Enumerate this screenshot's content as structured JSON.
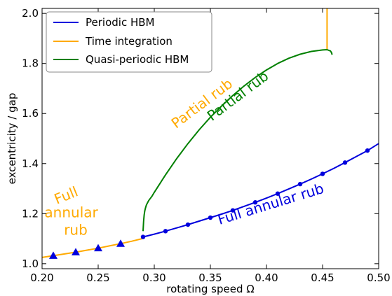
{
  "chart_data": {
    "type": "line",
    "xlabel": "rotating speed Ω",
    "ylabel": "excentricity / gap",
    "xlim": [
      0.2,
      0.5
    ],
    "ylim": [
      0.98,
      2.02
    ],
    "x_ticks": [
      "0.20",
      "0.25",
      "0.30",
      "0.35",
      "0.40",
      "0.45",
      "0.50"
    ],
    "x_tick_values": [
      0.2,
      0.25,
      0.3,
      0.35,
      0.4,
      0.45,
      0.5
    ],
    "y_ticks": [
      "1.0",
      "1.2",
      "1.4",
      "1.6",
      "1.8",
      "2.0"
    ],
    "y_tick_values": [
      1.0,
      1.2,
      1.4,
      1.6,
      1.8,
      2.0
    ],
    "grid": false,
    "legend_position": "top-left",
    "legend": [
      {
        "label": "Periodic HBM",
        "color": "#0000dd"
      },
      {
        "label": "Time integration",
        "color": "#ffaa00"
      },
      {
        "label": "Quasi-periodic HBM",
        "color": "#008000"
      }
    ],
    "series": [
      {
        "name": "Periodic HBM",
        "color": "#0000dd",
        "x": [
          0.29,
          0.3,
          0.31,
          0.32,
          0.33,
          0.34,
          0.35,
          0.36,
          0.37,
          0.38,
          0.39,
          0.4,
          0.41,
          0.42,
          0.43,
          0.44,
          0.45,
          0.46,
          0.47,
          0.48,
          0.49,
          0.5
        ],
        "y": [
          1.107,
          1.118,
          1.13,
          1.143,
          1.156,
          1.17,
          1.184,
          1.198,
          1.213,
          1.229,
          1.245,
          1.262,
          1.28,
          1.299,
          1.318,
          1.338,
          1.359,
          1.381,
          1.404,
          1.428,
          1.452,
          1.48
        ],
        "markers_x": [
          0.29,
          0.31,
          0.33,
          0.35,
          0.37,
          0.39,
          0.41,
          0.43,
          0.45,
          0.47,
          0.49
        ],
        "markers_y": [
          1.107,
          1.13,
          1.156,
          1.184,
          1.213,
          1.245,
          1.28,
          1.318,
          1.359,
          1.404,
          1.452
        ]
      },
      {
        "name": "Time integration",
        "color": "#ffaa00",
        "x": [
          0.2,
          0.21,
          0.22,
          0.23,
          0.24,
          0.25,
          0.26,
          0.27,
          0.28,
          0.289,
          0.2895
        ],
        "y": [
          1.025,
          1.032,
          1.039,
          1.046,
          1.054,
          1.062,
          1.071,
          1.08,
          1.09,
          1.1,
          1.115
        ],
        "markers_x": [
          0.21,
          0.23,
          0.25,
          0.27
        ],
        "markers_y": [
          1.032,
          1.046,
          1.062,
          1.08
        ]
      },
      {
        "name": "Time integration",
        "color": "#ffaa00",
        "x": [
          0.454,
          0.454
        ],
        "y": [
          1.855,
          2.02
        ]
      },
      {
        "name": "Quasi-periodic HBM",
        "color": "#008000",
        "x": [
          0.29,
          0.2905,
          0.291,
          0.2915,
          0.292,
          0.293,
          0.295,
          0.298,
          0.3,
          0.305,
          0.31,
          0.32,
          0.33,
          0.34,
          0.35,
          0.36,
          0.37,
          0.38,
          0.39,
          0.4,
          0.41,
          0.42,
          0.43,
          0.44,
          0.45,
          0.454,
          0.457,
          0.458,
          0.4585
        ],
        "y": [
          1.13,
          1.17,
          1.195,
          1.21,
          1.22,
          1.235,
          1.252,
          1.27,
          1.285,
          1.32,
          1.355,
          1.42,
          1.48,
          1.535,
          1.585,
          1.63,
          1.672,
          1.71,
          1.744,
          1.774,
          1.8,
          1.821,
          1.837,
          1.848,
          1.854,
          1.855,
          1.85,
          1.843,
          1.835
        ]
      }
    ],
    "annotations": [
      {
        "text": "Full",
        "x": 0.223,
        "y": 1.255,
        "color": "#ffaa00",
        "rotation": -22
      },
      {
        "text": "annular",
        "x": 0.226,
        "y": 1.185,
        "color": "#ffaa00",
        "rotation": 0
      },
      {
        "text": "rub",
        "x": 0.23,
        "y": 1.115,
        "color": "#ffaa00",
        "rotation": 0
      },
      {
        "text": "Partial rub",
        "x": 0.345,
        "y": 1.625,
        "color": "#ffaa00",
        "rotation": -37
      },
      {
        "text": "Partial rub",
        "x": 0.377,
        "y": 1.655,
        "color": "#008000",
        "rotation": -37
      },
      {
        "text": "Full annular rub",
        "x": 0.405,
        "y": 1.22,
        "color": "#0000dd",
        "rotation": -17
      }
    ]
  }
}
